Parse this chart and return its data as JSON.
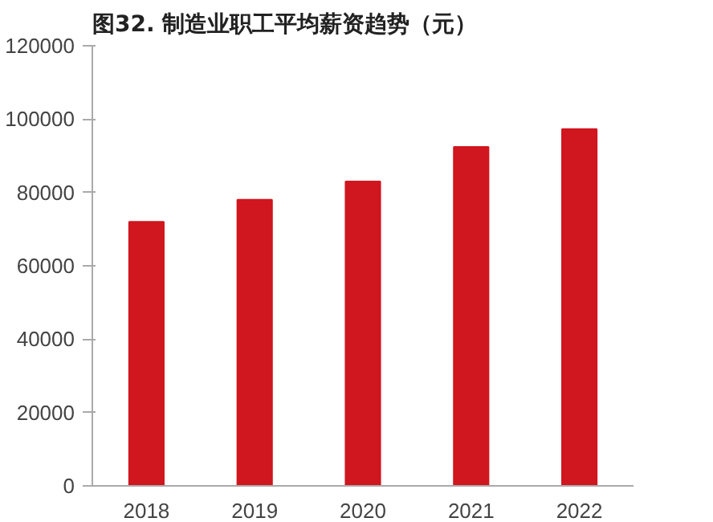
{
  "chart_data": {
    "type": "bar",
    "title": "图32. 制造业职工平均薪资趋势（元）",
    "categories": [
      "2018",
      "2019",
      "2020",
      "2021",
      "2022"
    ],
    "values": [
      72000,
      78000,
      83000,
      92400,
      97300
    ],
    "color": "#d0161e",
    "ylim": [
      0,
      120000
    ],
    "yticks": [
      0,
      20000,
      40000,
      60000,
      80000,
      100000,
      120000
    ],
    "grid": false
  }
}
